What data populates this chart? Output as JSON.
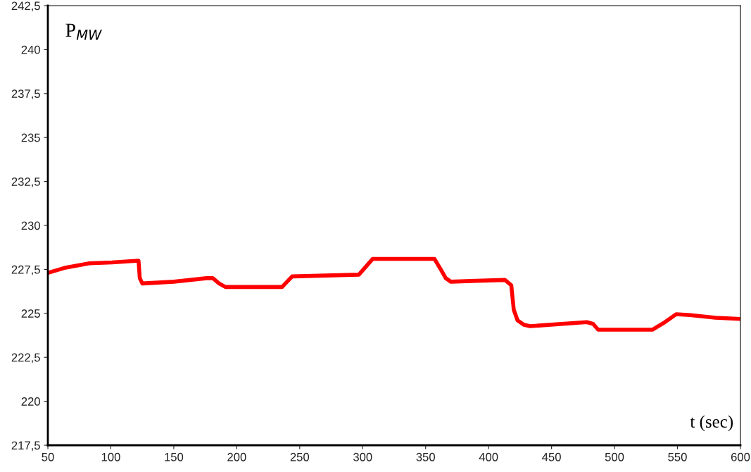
{
  "chart_data": {
    "type": "line",
    "ylabel": "P$_{MW}$",
    "xlabel": "t (sec)",
    "xlim": [
      50,
      600
    ],
    "xticks": [
      50,
      100,
      150,
      200,
      250,
      300,
      350,
      400,
      450,
      500,
      550,
      600
    ],
    "ylim": [
      217.5,
      242.5
    ],
    "yticks": [
      {
        "value": 217.5,
        "label": "217,5"
      },
      220,
      {
        "value": 222.5,
        "label": "222,5"
      },
      225,
      {
        "value": 227.5,
        "label": "227,5"
      },
      230,
      {
        "value": 232.5,
        "label": "232,5"
      },
      235,
      {
        "value": 237.5,
        "label": "237,5"
      },
      240,
      {
        "value": 242.5,
        "label": "242,5"
      }
    ],
    "grid": false,
    "legend": false,
    "marker": "none",
    "line_style": "solid",
    "series": [
      {
        "color": "#ff0000",
        "x": [
          50,
          64,
          83,
          101,
          122,
          123,
          125,
          150,
          176,
          181,
          186,
          191,
          236,
          240,
          244,
          297,
          308,
          357,
          362,
          366,
          370,
          390,
          413,
          418,
          420,
          423,
          428,
          433,
          478,
          483,
          487,
          530,
          540,
          549,
          560,
          580,
          600
        ],
        "values": [
          227.3,
          227.6,
          227.85,
          227.9,
          228.0,
          227.0,
          226.7,
          226.8,
          227.0,
          227.0,
          226.7,
          226.5,
          226.5,
          226.8,
          227.1,
          227.2,
          228.1,
          228.1,
          227.5,
          227.0,
          226.8,
          226.85,
          226.9,
          226.6,
          225.2,
          224.6,
          224.35,
          224.27,
          224.5,
          224.4,
          224.07,
          224.07,
          224.5,
          224.95,
          224.9,
          224.75,
          224.68
        ]
      }
    ]
  }
}
